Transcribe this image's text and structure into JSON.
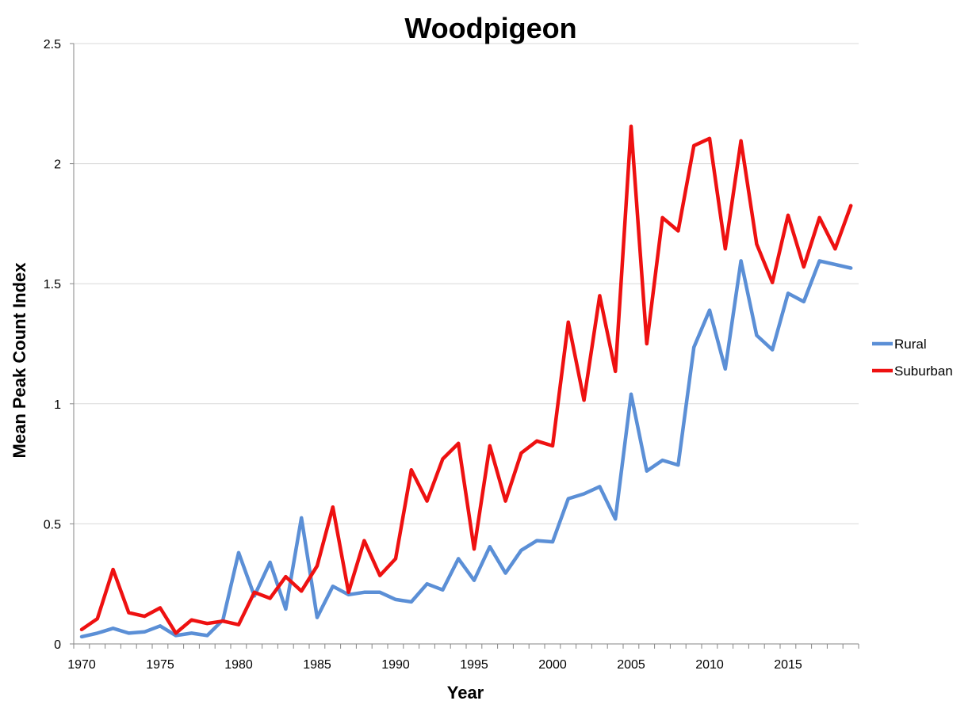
{
  "chart_data": {
    "type": "line",
    "title": "Woodpigeon",
    "xlabel": "Year",
    "ylabel": "Mean Peak Count Index",
    "xlim": [
      1970,
      2019
    ],
    "ylim": [
      0,
      2.5
    ],
    "xticks": [
      "1970",
      "1975",
      "1980",
      "1985",
      "1990",
      "1995",
      "2000",
      "2005",
      "2010",
      "2015"
    ],
    "yticks": [
      "0",
      "0.5",
      "1",
      "1.5",
      "2",
      "2.5"
    ],
    "grid": true,
    "legend_position": "right",
    "x": [
      1970,
      1971,
      1972,
      1973,
      1974,
      1975,
      1976,
      1977,
      1978,
      1979,
      1980,
      1981,
      1982,
      1983,
      1984,
      1985,
      1986,
      1987,
      1988,
      1989,
      1990,
      1991,
      1992,
      1993,
      1994,
      1995,
      1996,
      1997,
      1998,
      1999,
      2000,
      2001,
      2002,
      2003,
      2004,
      2005,
      2006,
      2007,
      2008,
      2009,
      2010,
      2011,
      2012,
      2013,
      2014,
      2015,
      2016,
      2017,
      2018,
      2019
    ],
    "series": [
      {
        "name": "Rural",
        "color": "#5b8fd6",
        "values": [
          0.03,
          0.045,
          0.065,
          0.045,
          0.05,
          0.075,
          0.035,
          0.045,
          0.035,
          0.1,
          0.38,
          0.2,
          0.34,
          0.145,
          0.525,
          0.11,
          0.24,
          0.205,
          0.215,
          0.215,
          0.185,
          0.175,
          0.25,
          0.225,
          0.355,
          0.265,
          0.405,
          0.295,
          0.39,
          0.43,
          0.425,
          0.605,
          0.625,
          0.655,
          0.52,
          1.04,
          0.72,
          0.765,
          0.745,
          1.235,
          1.39,
          1.145,
          1.595,
          1.285,
          1.225,
          1.46,
          1.425,
          1.595,
          1.58,
          1.565
        ]
      },
      {
        "name": "Suburban",
        "color": "#ee1111",
        "values": [
          0.06,
          0.105,
          0.31,
          0.13,
          0.115,
          0.15,
          0.045,
          0.1,
          0.085,
          0.095,
          0.08,
          0.215,
          0.19,
          0.28,
          0.22,
          0.325,
          0.57,
          0.215,
          0.43,
          0.285,
          0.355,
          0.725,
          0.595,
          0.77,
          0.835,
          0.395,
          0.825,
          0.595,
          0.795,
          0.845,
          0.825,
          1.34,
          1.015,
          1.45,
          1.135,
          2.155,
          1.25,
          1.775,
          1.72,
          2.075,
          2.105,
          1.645,
          2.095,
          1.665,
          1.505,
          1.785,
          1.57,
          1.775,
          1.645,
          1.825
        ]
      }
    ]
  }
}
